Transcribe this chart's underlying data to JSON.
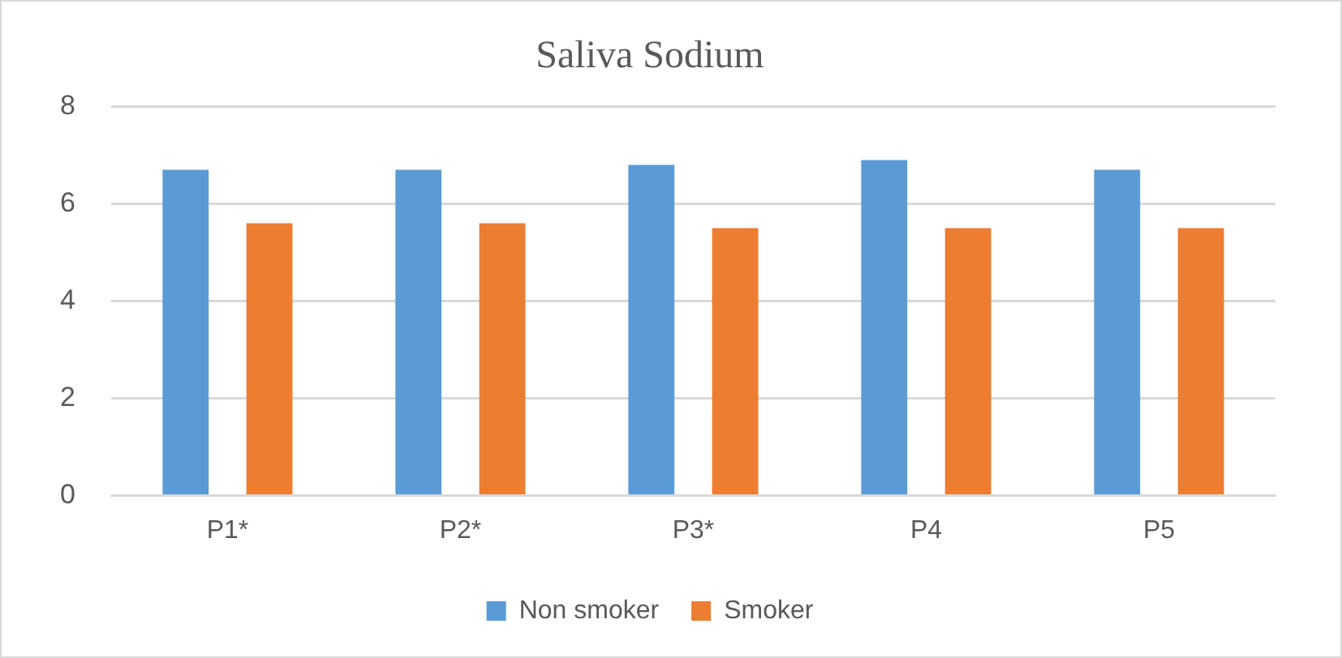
{
  "chart_data": {
    "type": "bar",
    "title": "Saliva Sodium",
    "categories": [
      "P1*",
      "P2*",
      "P3*",
      "P4",
      "P5"
    ],
    "series": [
      {
        "name": "Non smoker",
        "color": "#5b9bd5",
        "values": [
          6.7,
          6.7,
          6.8,
          6.9,
          6.7
        ]
      },
      {
        "name": "Smoker",
        "color": "#ed7d31",
        "values": [
          5.6,
          5.6,
          5.5,
          5.5,
          5.5
        ]
      }
    ],
    "ylim": [
      0,
      8
    ],
    "yticks": [
      0,
      2,
      4,
      6,
      8
    ],
    "grid": "y",
    "legend": "bottom"
  }
}
